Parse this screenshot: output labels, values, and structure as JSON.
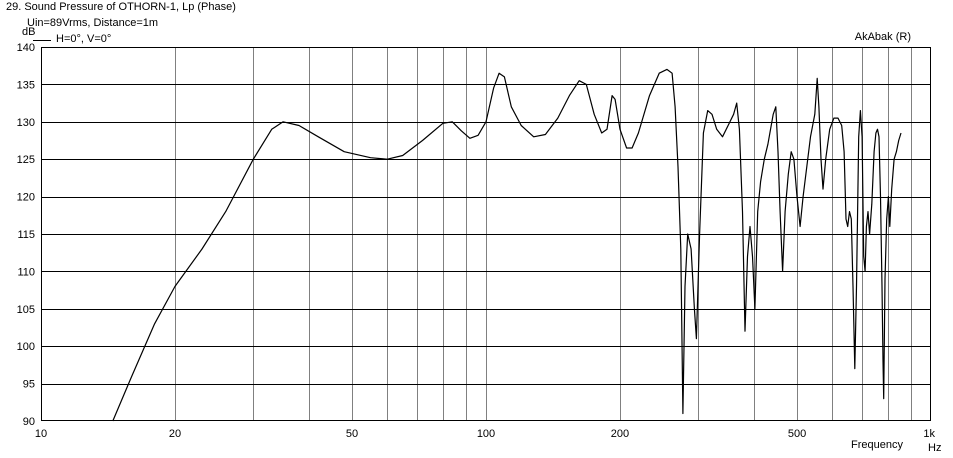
{
  "header": {
    "title": "29. Sound Pressure of OTHORN-1, Lp (Phase)",
    "subtitle": "Uin=89Vrms, Distance=1m",
    "brand": "AkAbak (R)"
  },
  "chart_data": {
    "type": "line",
    "xscale": "log",
    "xlim": [
      10,
      1000
    ],
    "ylim": [
      90,
      140
    ],
    "ylabel": "dB",
    "xlabel": "Frequency",
    "xunit": "Hz",
    "grid": true,
    "legend_position": "top-left",
    "x_ticks": [
      {
        "value": 10,
        "label": "10"
      },
      {
        "value": 20,
        "label": "20"
      },
      {
        "value": 50,
        "label": "50"
      },
      {
        "value": 100,
        "label": "100"
      },
      {
        "value": 200,
        "label": "200"
      },
      {
        "value": 500,
        "label": "500"
      },
      {
        "value": 1000,
        "label": "1k"
      }
    ],
    "y_ticks": [
      90,
      95,
      100,
      105,
      110,
      115,
      120,
      125,
      130,
      135,
      140
    ],
    "series": [
      {
        "name": "H=0°, V=0°",
        "color": "#000000",
        "points": [
          [
            14.5,
            90
          ],
          [
            16,
            96
          ],
          [
            18,
            103
          ],
          [
            20,
            108
          ],
          [
            23,
            113
          ],
          [
            26,
            118
          ],
          [
            30,
            125
          ],
          [
            33,
            129
          ],
          [
            35,
            130
          ],
          [
            38,
            129.5
          ],
          [
            42,
            128
          ],
          [
            48,
            126
          ],
          [
            55,
            125.2
          ],
          [
            60,
            125
          ],
          [
            65,
            125.5
          ],
          [
            72,
            127.5
          ],
          [
            80,
            129.8
          ],
          [
            84,
            130
          ],
          [
            88,
            128.8
          ],
          [
            92,
            127.8
          ],
          [
            96,
            128.2
          ],
          [
            100,
            130
          ],
          [
            104,
            134.5
          ],
          [
            107,
            136.5
          ],
          [
            110,
            136
          ],
          [
            114,
            132
          ],
          [
            120,
            129.5
          ],
          [
            128,
            128
          ],
          [
            136,
            128.3
          ],
          [
            145,
            130.5
          ],
          [
            154,
            133.5
          ],
          [
            162,
            135.5
          ],
          [
            168,
            135
          ],
          [
            175,
            131
          ],
          [
            182,
            128.5
          ],
          [
            187,
            129
          ],
          [
            192,
            133.5
          ],
          [
            195,
            133
          ],
          [
            200,
            129
          ],
          [
            207,
            126.5
          ],
          [
            213,
            126.5
          ],
          [
            220,
            128.5
          ],
          [
            233,
            133.5
          ],
          [
            245,
            136.5
          ],
          [
            255,
            137
          ],
          [
            262,
            136.5
          ],
          [
            266,
            132
          ],
          [
            270,
            124
          ],
          [
            274,
            113
          ],
          [
            277,
            91
          ],
          [
            280,
            108
          ],
          [
            284,
            115
          ],
          [
            289,
            113
          ],
          [
            294,
            105
          ],
          [
            297,
            101
          ],
          [
            302,
            115
          ],
          [
            308,
            128.5
          ],
          [
            315,
            131.5
          ],
          [
            322,
            131
          ],
          [
            330,
            129
          ],
          [
            340,
            128
          ],
          [
            350,
            129.5
          ],
          [
            360,
            131
          ],
          [
            366,
            132.5
          ],
          [
            371,
            129
          ],
          [
            377,
            118
          ],
          [
            382,
            102
          ],
          [
            387,
            112
          ],
          [
            392,
            116
          ],
          [
            397,
            112
          ],
          [
            402,
            105
          ],
          [
            408,
            118
          ],
          [
            414,
            122
          ],
          [
            422,
            125
          ],
          [
            430,
            127
          ],
          [
            442,
            131
          ],
          [
            448,
            132
          ],
          [
            453,
            126
          ],
          [
            458,
            118
          ],
          [
            464,
            110
          ],
          [
            470,
            118
          ],
          [
            478,
            123
          ],
          [
            485,
            126
          ],
          [
            492,
            125
          ],
          [
            500,
            120
          ],
          [
            508,
            116
          ],
          [
            516,
            120
          ],
          [
            526,
            124
          ],
          [
            536,
            128
          ],
          [
            548,
            131
          ],
          [
            555,
            135.8
          ],
          [
            560,
            132
          ],
          [
            566,
            125
          ],
          [
            572,
            121
          ],
          [
            580,
            125
          ],
          [
            592,
            129
          ],
          [
            605,
            130.5
          ],
          [
            618,
            130.5
          ],
          [
            630,
            129.5
          ],
          [
            638,
            126
          ],
          [
            644,
            117
          ],
          [
            650,
            116
          ],
          [
            656,
            118
          ],
          [
            662,
            117
          ],
          [
            668,
            108
          ],
          [
            674,
            97
          ],
          [
            680,
            108
          ],
          [
            688,
            128
          ],
          [
            694,
            131.5
          ],
          [
            700,
            128
          ],
          [
            706,
            112
          ],
          [
            711,
            110
          ],
          [
            716,
            116
          ],
          [
            722,
            118
          ],
          [
            728,
            115
          ],
          [
            736,
            119
          ],
          [
            745,
            126
          ],
          [
            752,
            128.5
          ],
          [
            758,
            129
          ],
          [
            764,
            128
          ],
          [
            770,
            120
          ],
          [
            776,
            108
          ],
          [
            780,
            98
          ],
          [
            783,
            93
          ],
          [
            788,
            109
          ],
          [
            795,
            117
          ],
          [
            802,
            120
          ],
          [
            808,
            116
          ],
          [
            816,
            121
          ],
          [
            826,
            125
          ],
          [
            836,
            126
          ],
          [
            846,
            127.5
          ],
          [
            856,
            128.5
          ]
        ]
      }
    ]
  }
}
